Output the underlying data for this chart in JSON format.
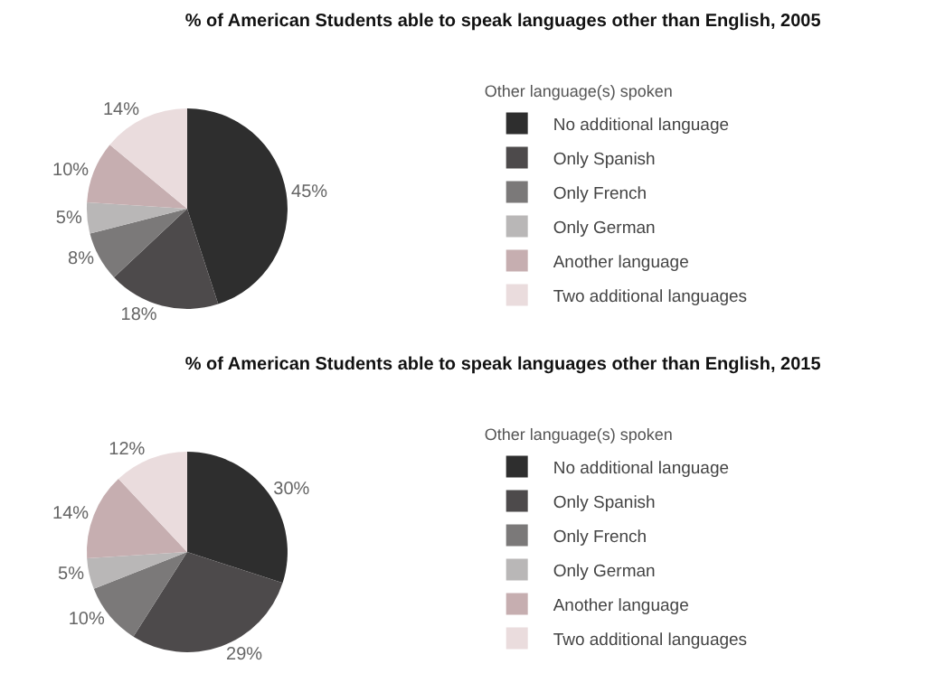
{
  "chart_data": [
    {
      "type": "pie",
      "title": "% of American Students able to speak languages other than English, 2005",
      "legend_title": "Other language(s) spoken",
      "legend": "right",
      "categories": [
        "No additional language",
        "Only Spanish",
        "Only French",
        "Only German",
        "Another language",
        "Two additional languages"
      ],
      "values": [
        45,
        18,
        8,
        5,
        10,
        14
      ],
      "value_labels": [
        "45%",
        "18%",
        "8%",
        "5%",
        "10%",
        "14%"
      ],
      "colors": [
        "#2e2e2e",
        "#4d4a4b",
        "#7b7979",
        "#b9b7b7",
        "#c6aeb0",
        "#eadcdd"
      ]
    },
    {
      "type": "pie",
      "title": "% of American Students able to speak languages other than English, 2015",
      "legend_title": "Other language(s) spoken",
      "legend": "right",
      "categories": [
        "No additional language",
        "Only Spanish",
        "Only French",
        "Only German",
        "Another language",
        "Two additional languages"
      ],
      "values": [
        30,
        29,
        10,
        5,
        14,
        12
      ],
      "value_labels": [
        "30%",
        "29%",
        "10%",
        "5%",
        "14%",
        "12%"
      ],
      "colors": [
        "#2e2e2e",
        "#4d4a4b",
        "#7b7979",
        "#b9b7b7",
        "#c6aeb0",
        "#eadcdd"
      ]
    }
  ]
}
